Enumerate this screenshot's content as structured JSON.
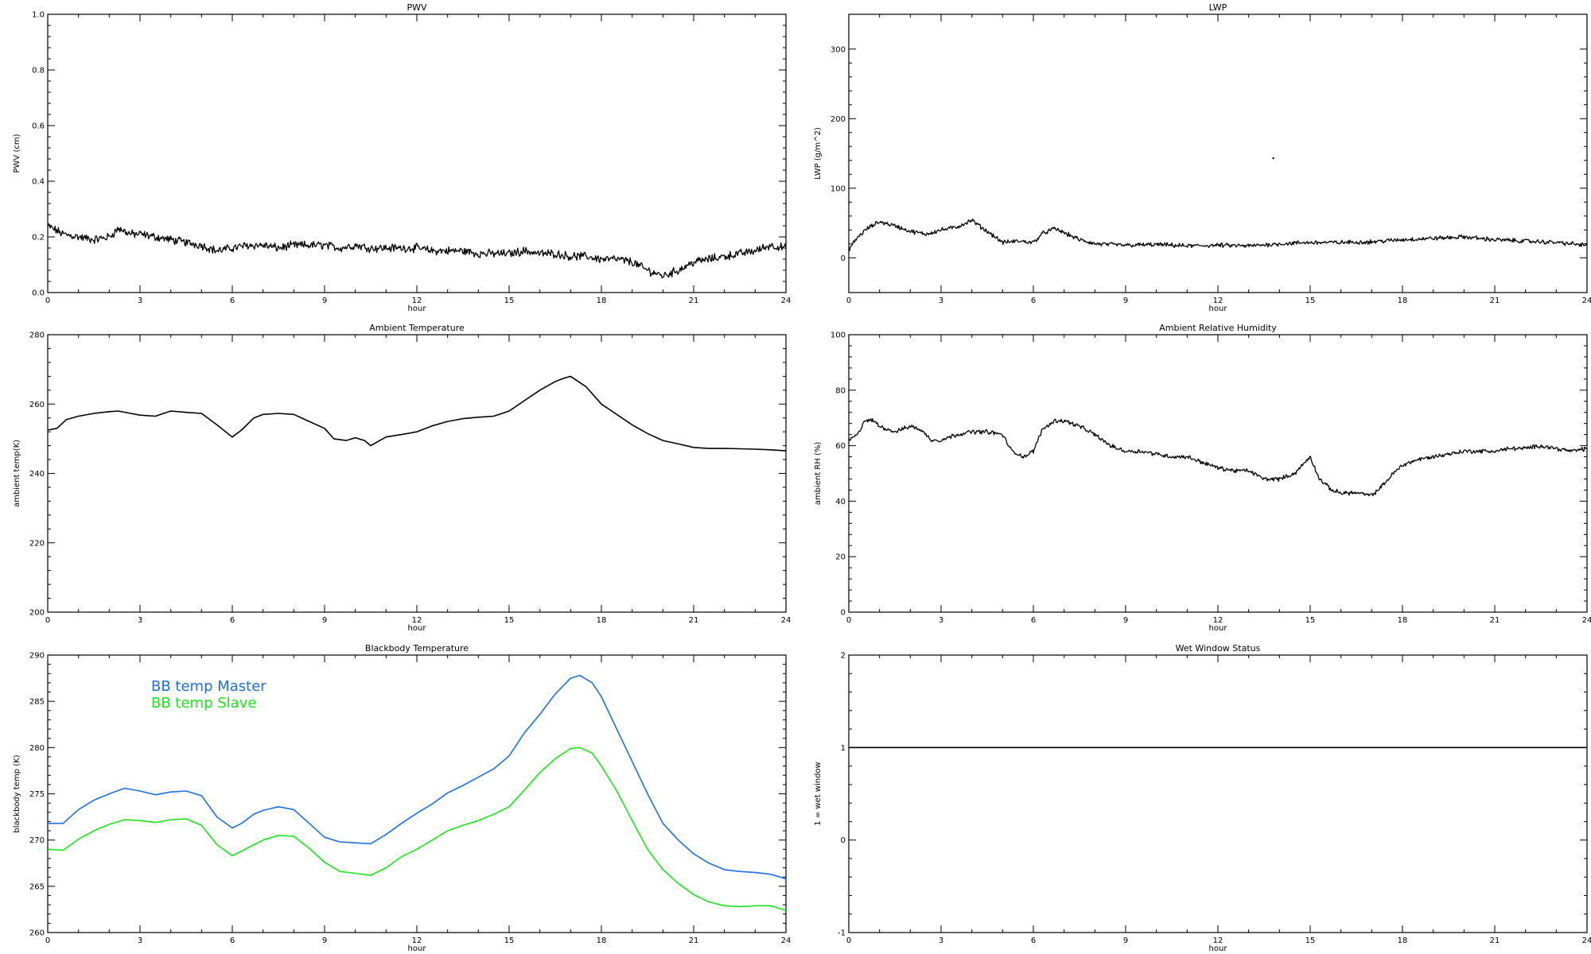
{
  "chart_data": [
    {
      "type": "line",
      "title": "PWV",
      "xlabel": "hour",
      "ylabel": "PWV (cm)",
      "xlim": [
        0,
        24
      ],
      "ylim": [
        0,
        1.0
      ],
      "xticks": [
        0,
        3,
        6,
        9,
        12,
        15,
        18,
        21,
        24
      ],
      "yticks": [
        0.0,
        0.2,
        0.4,
        0.6,
        0.8,
        1.0
      ],
      "ytick_labels": [
        "0.0",
        "0.2",
        "0.4",
        "0.6",
        "0.8",
        "1.0"
      ],
      "series": [
        {
          "color": "#000000",
          "noise": 0.012,
          "x": [
            0,
            0.5,
            1,
            1.5,
            2,
            2.3,
            2.7,
            3,
            3.5,
            4,
            4.5,
            5,
            5.5,
            6,
            6.5,
            7,
            7.5,
            8,
            8.5,
            9,
            9.5,
            10,
            10.5,
            11,
            11.5,
            12,
            12.5,
            13,
            13.5,
            14,
            14.5,
            15,
            15.5,
            16,
            16.5,
            17,
            17.5,
            18,
            18.5,
            19,
            19.5,
            20,
            20.5,
            21,
            21.5,
            22,
            22.5,
            23,
            23.5,
            24
          ],
          "y": [
            0.24,
            0.21,
            0.2,
            0.19,
            0.2,
            0.23,
            0.21,
            0.21,
            0.2,
            0.19,
            0.18,
            0.17,
            0.15,
            0.16,
            0.17,
            0.17,
            0.16,
            0.17,
            0.17,
            0.17,
            0.16,
            0.17,
            0.16,
            0.16,
            0.16,
            0.16,
            0.15,
            0.15,
            0.15,
            0.14,
            0.14,
            0.14,
            0.15,
            0.14,
            0.14,
            0.13,
            0.13,
            0.12,
            0.12,
            0.11,
            0.08,
            0.06,
            0.08,
            0.11,
            0.12,
            0.13,
            0.14,
            0.15,
            0.17,
            0.16
          ]
        }
      ]
    },
    {
      "type": "line",
      "title": "LWP",
      "xlabel": "hour",
      "ylabel": "LWP (g/m^2)",
      "xlim": [
        0,
        24
      ],
      "ylim": [
        -50,
        350
      ],
      "xticks": [
        0,
        3,
        6,
        9,
        12,
        15,
        18,
        21,
        24
      ],
      "yticks": [
        0,
        100,
        200,
        300
      ],
      "ytick_labels": [
        "0",
        "100",
        "200",
        "300"
      ],
      "series": [
        {
          "color": "#000000",
          "noise": 2.5,
          "x": [
            0,
            0.3,
            0.6,
            1,
            1.5,
            2,
            2.5,
            3,
            3.5,
            4,
            4.3,
            4.7,
            5,
            5.5,
            6,
            6.3,
            6.7,
            7,
            7.5,
            8,
            9,
            10,
            11,
            12,
            13,
            14,
            15,
            16,
            17,
            18,
            19,
            20,
            21,
            22,
            23,
            24
          ],
          "y": [
            12,
            30,
            42,
            52,
            46,
            38,
            34,
            40,
            44,
            54,
            44,
            32,
            22,
            24,
            22,
            35,
            42,
            36,
            26,
            20,
            18,
            19,
            17,
            18,
            17,
            20,
            22,
            22,
            23,
            26,
            28,
            30,
            26,
            24,
            22,
            18
          ]
        },
        {
          "color": "#000000",
          "noise": 0,
          "x": [
            13.8
          ],
          "y": [
            143
          ]
        }
      ]
    },
    {
      "type": "line",
      "title": "Ambient Temperature",
      "xlabel": "hour",
      "ylabel": "ambient temp(K)",
      "xlim": [
        0,
        24
      ],
      "ylim": [
        200,
        280
      ],
      "xticks": [
        0,
        3,
        6,
        9,
        12,
        15,
        18,
        21,
        24
      ],
      "yticks": [
        200,
        220,
        240,
        260,
        280
      ],
      "ytick_labels": [
        "200",
        "220",
        "240",
        "260",
        "280"
      ],
      "series": [
        {
          "color": "#000000",
          "noise": 0,
          "x": [
            0,
            0.3,
            0.6,
            1,
            1.5,
            2,
            2.3,
            2.7,
            3,
            3.5,
            4,
            4.5,
            5,
            5.5,
            6,
            6.3,
            6.7,
            7,
            7.5,
            8,
            8.5,
            9,
            9.3,
            9.7,
            10,
            10.3,
            10.5,
            11,
            11.5,
            12,
            12.5,
            13,
            13.5,
            14,
            14.5,
            15,
            15.5,
            16,
            16.5,
            16.8,
            17,
            17.5,
            18,
            18.5,
            19,
            19.5,
            20,
            20.5,
            21,
            21.5,
            22,
            22.5,
            23,
            23.5,
            24
          ],
          "y": [
            252.5,
            253,
            255.5,
            256.5,
            257.3,
            257.8,
            258,
            257.3,
            256.8,
            256.5,
            258,
            257.6,
            257.3,
            254,
            250.5,
            252.5,
            256,
            257,
            257.3,
            257,
            255,
            253,
            250,
            249.5,
            250.3,
            249.5,
            248,
            250.5,
            251.2,
            252,
            253.7,
            255,
            255.8,
            256.2,
            256.5,
            258,
            261,
            264,
            266.5,
            267.5,
            268,
            265,
            260,
            257,
            254,
            251.5,
            249.5,
            248.5,
            247.5,
            247.2,
            247.2,
            247.1,
            247,
            246.8,
            246.5
          ]
        }
      ]
    },
    {
      "type": "line",
      "title": "Ambient Relative Humidity",
      "xlabel": "hour",
      "ylabel": "ambient RH (%)",
      "xlim": [
        0,
        24
      ],
      "ylim": [
        0,
        100
      ],
      "xticks": [
        0,
        3,
        6,
        9,
        12,
        15,
        18,
        21,
        24
      ],
      "yticks": [
        0,
        20,
        40,
        60,
        80,
        100
      ],
      "ytick_labels": [
        "0",
        "20",
        "40",
        "60",
        "80",
        "100"
      ],
      "series": [
        {
          "color": "#000000",
          "noise": 0.6,
          "x": [
            0,
            0.3,
            0.5,
            0.8,
            1,
            1.5,
            2,
            2.3,
            2.7,
            3,
            3.5,
            4,
            4.5,
            5,
            5.3,
            5.7,
            6,
            6.3,
            6.7,
            7,
            7.5,
            8,
            8.5,
            9,
            9.5,
            10,
            10.5,
            11,
            11.5,
            12,
            12.5,
            13,
            13.5,
            14,
            14.5,
            15,
            15.3,
            15.7,
            16,
            16.5,
            17,
            17.3,
            17.7,
            18,
            18.5,
            19,
            19.5,
            20,
            20.5,
            21,
            21.5,
            22,
            22.5,
            23,
            23.5,
            24
          ],
          "y": [
            62,
            64,
            69,
            69,
            67,
            65,
            67,
            66,
            62,
            62,
            64,
            65,
            65,
            64,
            58,
            56,
            58,
            66,
            69,
            69,
            67,
            64,
            60,
            58,
            58,
            57,
            56,
            56,
            54,
            52,
            51,
            51,
            48,
            48,
            50,
            56,
            48,
            44,
            43,
            43,
            42,
            45,
            50,
            53,
            55,
            56,
            57,
            58,
            58,
            58,
            59,
            59,
            60,
            59,
            58,
            59
          ]
        }
      ]
    },
    {
      "type": "line",
      "title": "Blackbody Temperature",
      "xlabel": "hour",
      "ylabel": "blackbody temp (K)",
      "xlim": [
        0,
        24
      ],
      "ylim": [
        260,
        290
      ],
      "xticks": [
        0,
        3,
        6,
        9,
        12,
        15,
        18,
        21,
        24
      ],
      "yticks": [
        260,
        265,
        270,
        275,
        280,
        285,
        290
      ],
      "ytick_labels": [
        "260",
        "265",
        "270",
        "275",
        "280",
        "285",
        "290"
      ],
      "legend": [
        "BB temp Master",
        "BB temp Slave"
      ],
      "series": [
        {
          "name": "BB temp Master",
          "color": "#1e6ee6",
          "noise": 0,
          "x": [
            0,
            0.5,
            1,
            1.5,
            2,
            2.5,
            3,
            3.5,
            4,
            4.5,
            5,
            5.5,
            6,
            6.3,
            6.7,
            7,
            7.5,
            8,
            8.5,
            9,
            9.5,
            10,
            10.5,
            11,
            11.5,
            12,
            12.5,
            13,
            13.5,
            14,
            14.5,
            15,
            15.5,
            16,
            16.5,
            17,
            17.3,
            17.7,
            18,
            18.5,
            19,
            19.5,
            20,
            20.5,
            21,
            21.5,
            22,
            22.5,
            23,
            23.5,
            24
          ],
          "y": [
            271.8,
            271.8,
            273.3,
            274.3,
            275.0,
            275.6,
            275.3,
            274.9,
            275.2,
            275.3,
            274.8,
            272.5,
            271.3,
            271.8,
            272.8,
            273.2,
            273.6,
            273.3,
            271.8,
            270.3,
            269.8,
            269.7,
            269.6,
            270.6,
            271.8,
            272.9,
            273.9,
            275.1,
            275.9,
            276.8,
            277.7,
            279.1,
            281.6,
            283.6,
            285.8,
            287.5,
            287.8,
            287.0,
            285.5,
            282.0,
            278.5,
            275.0,
            271.8,
            270.0,
            268.5,
            267.5,
            266.8,
            266.6,
            266.5,
            266.3,
            265.8
          ]
        },
        {
          "name": "BB temp Slave",
          "color": "#19e619",
          "noise": 0,
          "x": [
            0,
            0.5,
            1,
            1.5,
            2,
            2.5,
            3,
            3.5,
            4,
            4.5,
            5,
            5.5,
            6,
            6.3,
            6.7,
            7,
            7.5,
            8,
            8.5,
            9,
            9.5,
            10,
            10.5,
            11,
            11.5,
            12,
            12.5,
            13,
            13.5,
            14,
            14.5,
            15,
            15.5,
            16,
            16.5,
            17,
            17.3,
            17.7,
            18,
            18.5,
            19,
            19.5,
            20,
            20.5,
            21,
            21.5,
            22,
            22.5,
            23,
            23.5,
            24
          ],
          "y": [
            269.0,
            268.9,
            270.1,
            271.0,
            271.7,
            272.2,
            272.1,
            271.9,
            272.2,
            272.3,
            271.6,
            269.5,
            268.3,
            268.8,
            269.5,
            270.0,
            270.5,
            270.4,
            269.1,
            267.6,
            266.6,
            266.4,
            266.2,
            267.0,
            268.2,
            269.0,
            270.0,
            271.0,
            271.6,
            272.1,
            272.8,
            273.6,
            275.4,
            277.3,
            278.8,
            279.9,
            280.0,
            279.4,
            278.0,
            275.3,
            272.1,
            269.0,
            266.8,
            265.3,
            264.1,
            263.3,
            262.9,
            262.8,
            262.9,
            262.9,
            262.4
          ]
        }
      ]
    },
    {
      "type": "line",
      "title": "Wet Window Status",
      "xlabel": "hour",
      "ylabel": "1 = wet window",
      "xlim": [
        0,
        24
      ],
      "ylim": [
        -1,
        2
      ],
      "xticks": [
        0,
        3,
        6,
        9,
        12,
        15,
        18,
        21,
        24
      ],
      "yticks": [
        -1,
        0,
        1,
        2
      ],
      "ytick_labels": [
        "-1",
        "0",
        "1",
        "2"
      ],
      "series": [
        {
          "color": "#000000",
          "noise": 0,
          "x": [
            0,
            24
          ],
          "y": [
            1,
            1
          ]
        }
      ]
    }
  ]
}
